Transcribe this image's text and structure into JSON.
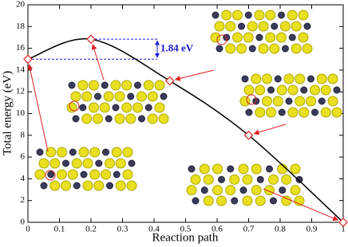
{
  "chart_data": {
    "type": "line",
    "xlabel": "Reaction path",
    "ylabel": "Total energy (eV)",
    "annotation": "1.84 eV",
    "x": [
      0,
      0.2,
      0.45,
      0.7,
      1
    ],
    "series": [
      {
        "color": "#000000",
        "marker_color": "#e02020",
        "values": [
          15,
          16.84,
          13,
          8,
          0
        ]
      }
    ],
    "xlim": [
      0,
      1
    ],
    "xticks": [
      0,
      0.1,
      0.2,
      0.3,
      0.4,
      0.5,
      0.6,
      0.7,
      0.8,
      0.9,
      1
    ],
    "ylim": [
      0,
      20
    ],
    "yticks": [
      0,
      2,
      4,
      6,
      8,
      10,
      12,
      14,
      16,
      18,
      20
    ]
  }
}
